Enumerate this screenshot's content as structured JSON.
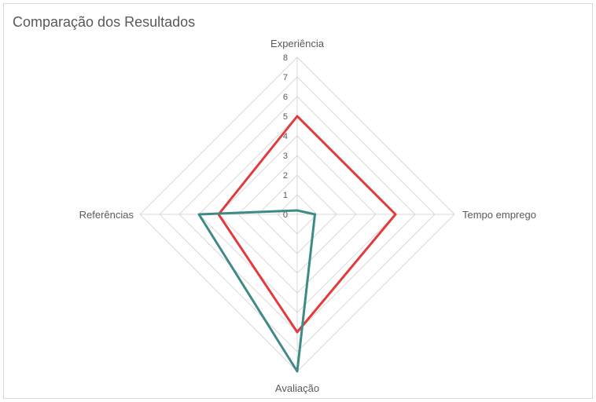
{
  "chart_data": {
    "type": "radar",
    "title": "Comparação dos Resultados",
    "categories": [
      "Experiência",
      "Tempo emprego",
      "Avaliação",
      "Referências"
    ],
    "rlim": [
      0,
      8
    ],
    "ticks": [
      "0",
      "1",
      "2",
      "3",
      "4",
      "5",
      "6",
      "7",
      "8"
    ],
    "grid": true,
    "legend": "none",
    "series": [
      {
        "color": "#e03c3c",
        "values": [
          5,
          5,
          6,
          4
        ]
      },
      {
        "color": "#3f8a86",
        "values": [
          0.2,
          0.9,
          8,
          5
        ]
      }
    ]
  }
}
